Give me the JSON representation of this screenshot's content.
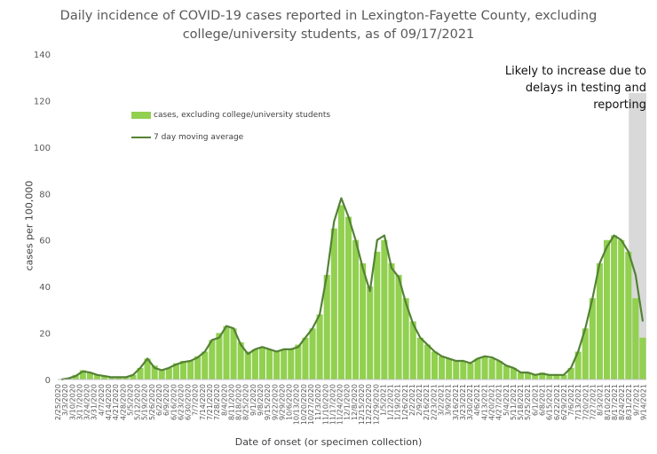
{
  "chart_data": {
    "type": "bar",
    "title": "Daily incidence of COVID-19 cases reported in Lexington-Fayette County, excluding college/university students, as of 09/17/2021",
    "title_line1": "Daily incidence of COVID-19 cases reported in Lexington-Fayette County, excluding",
    "title_line2": "college/university students, as of 09/17/2021",
    "xlabel": "Date of onset (or specimen collection)",
    "ylabel": "cases per 100,000",
    "ylim": [
      0,
      140
    ],
    "yticks": [
      "0",
      "20",
      "40",
      "60",
      "80",
      "100",
      "120",
      "140"
    ],
    "grid": false,
    "legend_position": "top-left",
    "note": "Likely to increase due to delays in testing and reporting",
    "note_lines": [
      "Likely to increase due to",
      "delays in testing and",
      "reporting"
    ],
    "shaded_region": {
      "start": "8/31/2021",
      "end": "9/17/2021",
      "color": "#d9d9d9"
    },
    "colors": {
      "bars": "#92d050",
      "line": "#548235",
      "axis": "#bfbfbf"
    },
    "x_start": "2/25/2020",
    "x_end": "9/17/2021",
    "xticks": [
      "2/25/2020",
      "3/3/2020",
      "3/10/2020",
      "3/17/2020",
      "3/24/2020",
      "3/31/2020",
      "4/7/2020",
      "4/14/2020",
      "4/21/2020",
      "4/28/2020",
      "5/5/2020",
      "5/12/2020",
      "5/19/2020",
      "5/26/2020",
      "6/2/2020",
      "6/9/2020",
      "6/16/2020",
      "6/23/2020",
      "6/30/2020",
      "7/7/2020",
      "7/14/2020",
      "7/21/2020",
      "7/28/2020",
      "8/4/2020",
      "8/11/2020",
      "8/18/2020",
      "8/25/2020",
      "9/1/2020",
      "9/8/2020",
      "9/15/2020",
      "9/22/2020",
      "9/29/2020",
      "10/6/2020",
      "10/13/2020",
      "10/20/2020",
      "10/27/2020",
      "11/3/2020",
      "11/10/2020",
      "11/17/2020",
      "11/24/2020",
      "12/1/2020",
      "12/8/2020",
      "12/15/2020",
      "12/22/2020",
      "12/29/2020",
      "1/5/2021",
      "1/12/2021",
      "1/19/2021",
      "1/26/2021",
      "2/2/2021",
      "2/9/2021",
      "2/16/2021",
      "2/23/2021",
      "3/2/2021",
      "3/9/2021",
      "3/16/2021",
      "3/23/2021",
      "3/30/2021",
      "4/6/2021",
      "4/13/2021",
      "4/20/2021",
      "4/27/2021",
      "5/4/2021",
      "5/11/2021",
      "5/18/2021",
      "5/25/2021",
      "6/1/2021",
      "6/8/2021",
      "6/15/2021",
      "6/22/2021",
      "6/29/2021",
      "7/6/2021",
      "7/13/2021",
      "7/20/2021",
      "7/27/2021",
      "8/3/2021",
      "8/10/2021",
      "8/17/2021",
      "8/24/2021",
      "8/31/2021",
      "9/7/2021",
      "9/14/2021"
    ],
    "series": [
      {
        "name": "cases, excluding college/university students",
        "type": "bar",
        "x_unit": "weekly date (each value = typical daily cases per 100,000 around the tick date)",
        "values": [
          0,
          0.5,
          2,
          4,
          3,
          2,
          1.5,
          1,
          1,
          1,
          2,
          5,
          9,
          6,
          4,
          5,
          7,
          8,
          8,
          10,
          12,
          17,
          20,
          23,
          22,
          16,
          12,
          13,
          14,
          13,
          12,
          13,
          13,
          15,
          18,
          22,
          28,
          45,
          65,
          75,
          70,
          60,
          50,
          40,
          55,
          60,
          50,
          45,
          35,
          25,
          18,
          15,
          12,
          10,
          9,
          8,
          8,
          7,
          9,
          10,
          9,
          8,
          6,
          5,
          3,
          3,
          2,
          3,
          2,
          2,
          2,
          5,
          12,
          22,
          35,
          50,
          60,
          62,
          60,
          55,
          35,
          18
        ]
      },
      {
        "name": "7 day moving average",
        "type": "line",
        "values": [
          0,
          0.5,
          1.5,
          3.5,
          3,
          2,
          1.5,
          1,
          1,
          1,
          2,
          5,
          9,
          5,
          4,
          5,
          6.5,
          7.5,
          8,
          9.5,
          12,
          17,
          18,
          23,
          22,
          15,
          11,
          13,
          14,
          13,
          12,
          13,
          13,
          14,
          18,
          22,
          28,
          45,
          68,
          78,
          70,
          60,
          48,
          38,
          60,
          62,
          48,
          44,
          33,
          24,
          18,
          15,
          12,
          10,
          9,
          8,
          8,
          7,
          9,
          10,
          9.5,
          8,
          6,
          5,
          3,
          3,
          2,
          2.5,
          2,
          2,
          2,
          5,
          12,
          22,
          35,
          50,
          57,
          62,
          60,
          55,
          45,
          25
        ]
      }
    ]
  }
}
